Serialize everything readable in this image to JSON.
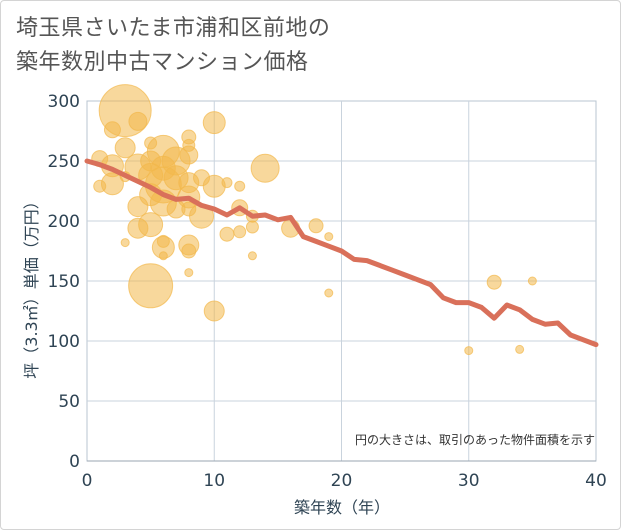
{
  "title_lines": [
    "埼玉県さいたま市浦和区前地の",
    "築年数別中古マンション価格"
  ],
  "colors": {
    "bubble": "#f2b84b",
    "line": "#d9705a",
    "grid": "#c9d3dd",
    "plot_border": "#b8c4d0"
  },
  "chart_data": {
    "type": "scatter",
    "title": "埼玉県さいたま市浦和区前地の築年数別中古マンション価格",
    "xlabel": "築年数（年）",
    "ylabel": "坪（3.3㎡）単価（万円）",
    "xlim": [
      0,
      40
    ],
    "ylim": [
      0,
      300
    ],
    "xticks": [
      0,
      10,
      20,
      30,
      40
    ],
    "yticks": [
      0,
      50,
      100,
      150,
      200,
      250,
      300
    ],
    "grid": true,
    "note": "円の大きさは、取引のあった物件面積を示す",
    "series": [
      {
        "type": "line",
        "x": [
          0,
          1,
          2,
          3,
          4,
          5,
          6,
          7,
          8,
          9,
          10,
          11,
          12,
          13,
          14,
          15,
          16,
          17,
          18,
          19,
          20,
          21,
          22,
          23,
          24,
          25,
          26,
          27,
          28,
          29,
          30,
          31,
          32,
          33,
          34,
          35,
          36,
          37,
          38,
          39,
          40
        ],
        "y": [
          250,
          247,
          243,
          238,
          233,
          228,
          222,
          218,
          219,
          213,
          210,
          205,
          211,
          204,
          205,
          201,
          203,
          187,
          183,
          179,
          175,
          168,
          167,
          163,
          159,
          155,
          151,
          147,
          136,
          132,
          132,
          128,
          119,
          130,
          126,
          118,
          114,
          115,
          105,
          101,
          97
        ]
      },
      {
        "type": "bubble",
        "points": [
          {
            "x": 3,
            "y": 292,
            "s": 26
          },
          {
            "x": 2,
            "y": 276,
            "s": 8
          },
          {
            "x": 4,
            "y": 283,
            "s": 9
          },
          {
            "x": 3,
            "y": 261,
            "s": 10
          },
          {
            "x": 1,
            "y": 252,
            "s": 8
          },
          {
            "x": 2,
            "y": 246,
            "s": 11
          },
          {
            "x": 4,
            "y": 245,
            "s": 13
          },
          {
            "x": 5,
            "y": 265,
            "s": 6
          },
          {
            "x": 6,
            "y": 258,
            "s": 16
          },
          {
            "x": 5,
            "y": 250,
            "s": 10
          },
          {
            "x": 6,
            "y": 244,
            "s": 12
          },
          {
            "x": 7,
            "y": 250,
            "s": 14
          },
          {
            "x": 8,
            "y": 255,
            "s": 9
          },
          {
            "x": 8,
            "y": 270,
            "s": 7
          },
          {
            "x": 8,
            "y": 263,
            "s": 6
          },
          {
            "x": 10,
            "y": 282,
            "s": 11
          },
          {
            "x": 14,
            "y": 244,
            "s": 14
          },
          {
            "x": 2,
            "y": 231,
            "s": 11
          },
          {
            "x": 1,
            "y": 229,
            "s": 6
          },
          {
            "x": 3,
            "y": 237,
            "s": 5
          },
          {
            "x": 5,
            "y": 238,
            "s": 12
          },
          {
            "x": 6,
            "y": 230,
            "s": 18
          },
          {
            "x": 7,
            "y": 236,
            "s": 12
          },
          {
            "x": 8,
            "y": 232,
            "s": 10
          },
          {
            "x": 9,
            "y": 236,
            "s": 8
          },
          {
            "x": 10,
            "y": 229,
            "s": 11
          },
          {
            "x": 11,
            "y": 232,
            "s": 5
          },
          {
            "x": 12,
            "y": 229,
            "s": 5
          },
          {
            "x": 4,
            "y": 212,
            "s": 10
          },
          {
            "x": 5,
            "y": 222,
            "s": 11
          },
          {
            "x": 6,
            "y": 215,
            "s": 13
          },
          {
            "x": 7,
            "y": 210,
            "s": 9
          },
          {
            "x": 8,
            "y": 220,
            "s": 11
          },
          {
            "x": 8,
            "y": 210,
            "s": 7
          },
          {
            "x": 9,
            "y": 204,
            "s": 12
          },
          {
            "x": 12,
            "y": 211,
            "s": 8
          },
          {
            "x": 13,
            "y": 204,
            "s": 6
          },
          {
            "x": 4,
            "y": 194,
            "s": 10
          },
          {
            "x": 5,
            "y": 197,
            "s": 12
          },
          {
            "x": 6,
            "y": 183,
            "s": 6
          },
          {
            "x": 6,
            "y": 178,
            "s": 11
          },
          {
            "x": 8,
            "y": 180,
            "s": 10
          },
          {
            "x": 8,
            "y": 175,
            "s": 7
          },
          {
            "x": 11,
            "y": 189,
            "s": 7
          },
          {
            "x": 12,
            "y": 191,
            "s": 6
          },
          {
            "x": 13,
            "y": 195,
            "s": 6
          },
          {
            "x": 16,
            "y": 194,
            "s": 9
          },
          {
            "x": 18,
            "y": 196,
            "s": 7
          },
          {
            "x": 19,
            "y": 187,
            "s": 4
          },
          {
            "x": 3,
            "y": 182,
            "s": 4
          },
          {
            "x": 6,
            "y": 171,
            "s": 4
          },
          {
            "x": 13,
            "y": 171,
            "s": 4
          },
          {
            "x": 8,
            "y": 157,
            "s": 4
          },
          {
            "x": 5,
            "y": 146,
            "s": 22
          },
          {
            "x": 10,
            "y": 125,
            "s": 10
          },
          {
            "x": 19,
            "y": 140,
            "s": 4
          },
          {
            "x": 32,
            "y": 149,
            "s": 7
          },
          {
            "x": 35,
            "y": 150,
            "s": 4
          },
          {
            "x": 30,
            "y": 92,
            "s": 4
          },
          {
            "x": 34,
            "y": 93,
            "s": 4
          }
        ]
      }
    ]
  }
}
